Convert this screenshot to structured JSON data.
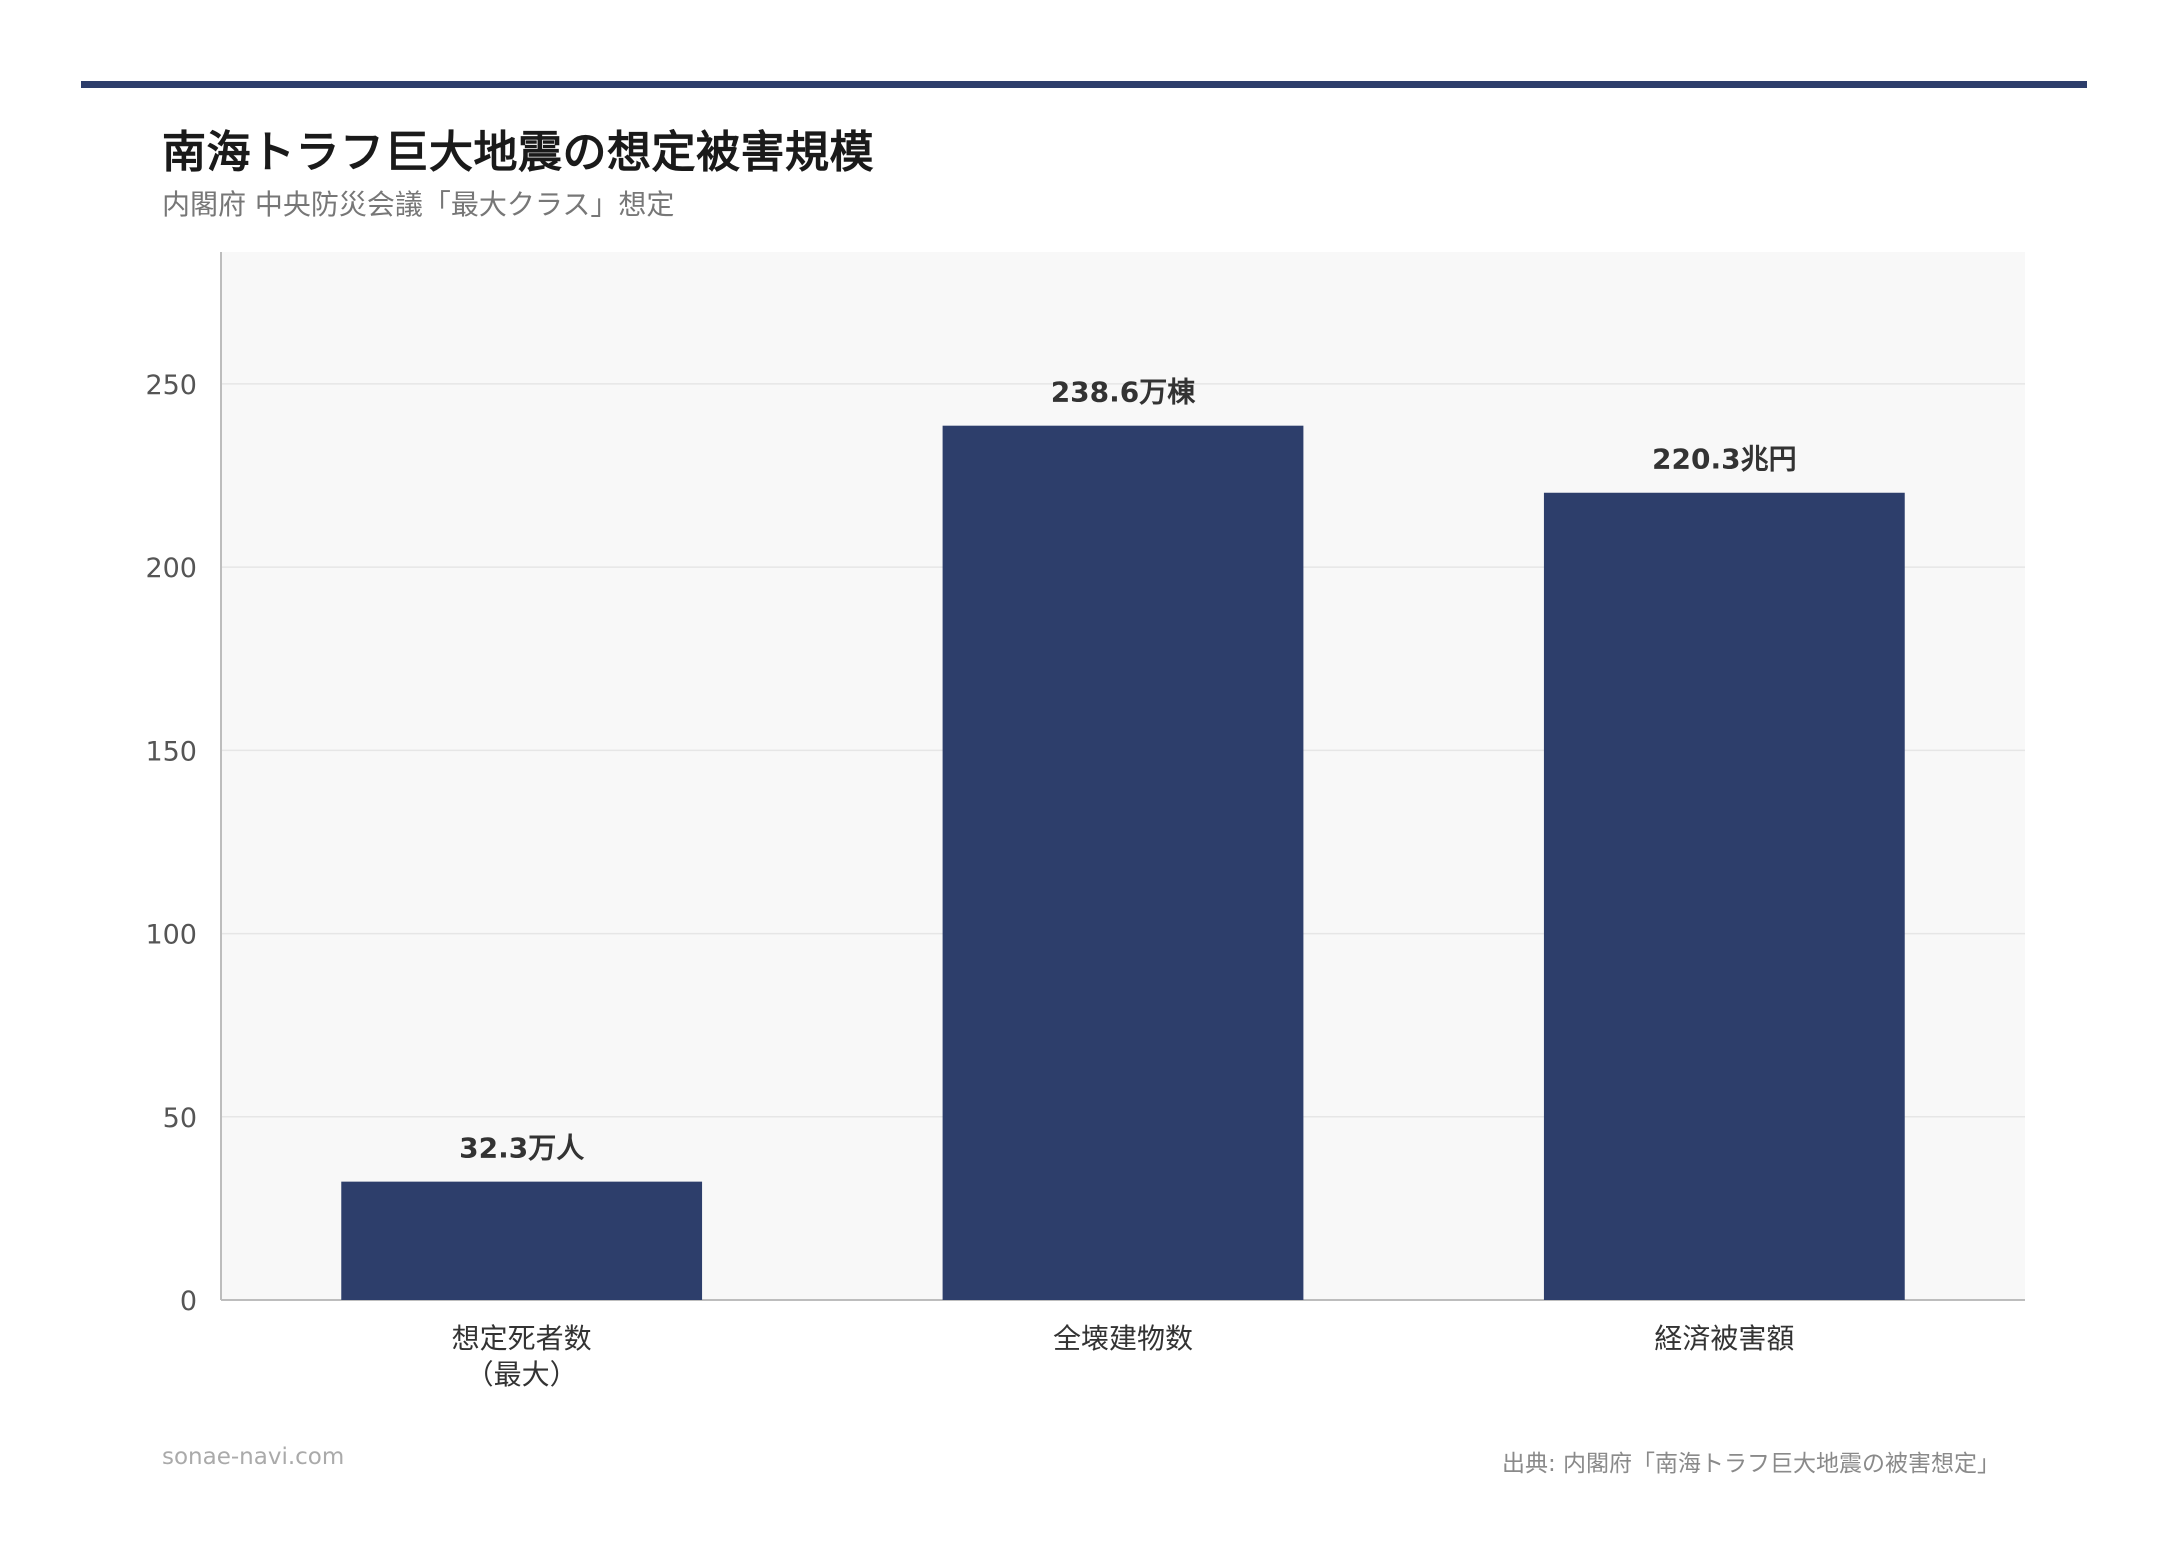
{
  "header": {
    "title": "南海トラフ巨大地震の想定被害規模",
    "subtitle": "内閣府 中央防災会議「最大クラス」想定"
  },
  "footer": {
    "site": "sonae-navi.com",
    "source": "出典: 内閣府「南海トラフ巨大地震の被害想定」"
  },
  "colors": {
    "accent": "#2d3e6b",
    "bar": "#2d3e6b",
    "plot_background": "#f8f8f8",
    "grid": "#e6e6e6",
    "axis": "#bdbdbd",
    "tick_text": "#555555",
    "data_label": "#333333"
  },
  "chart_data": {
    "type": "bar",
    "categories": [
      [
        "想定死者数",
        "（最大）"
      ],
      [
        "全壊建物数"
      ],
      [
        "経済被害額"
      ]
    ],
    "values": [
      32.3,
      238.6,
      220.3
    ],
    "data_labels": [
      "32.3万人",
      "238.6万棟",
      "220.3兆円"
    ],
    "title": "南海トラフ巨大地震の想定被害規模",
    "subtitle": "内閣府 中央防災会議「最大クラス」想定",
    "xlabel": "",
    "ylabel": "",
    "ylim": [
      0,
      286
    ],
    "yticks": [
      0,
      50,
      100,
      150,
      200,
      250
    ],
    "grid": true,
    "legend": "none"
  }
}
